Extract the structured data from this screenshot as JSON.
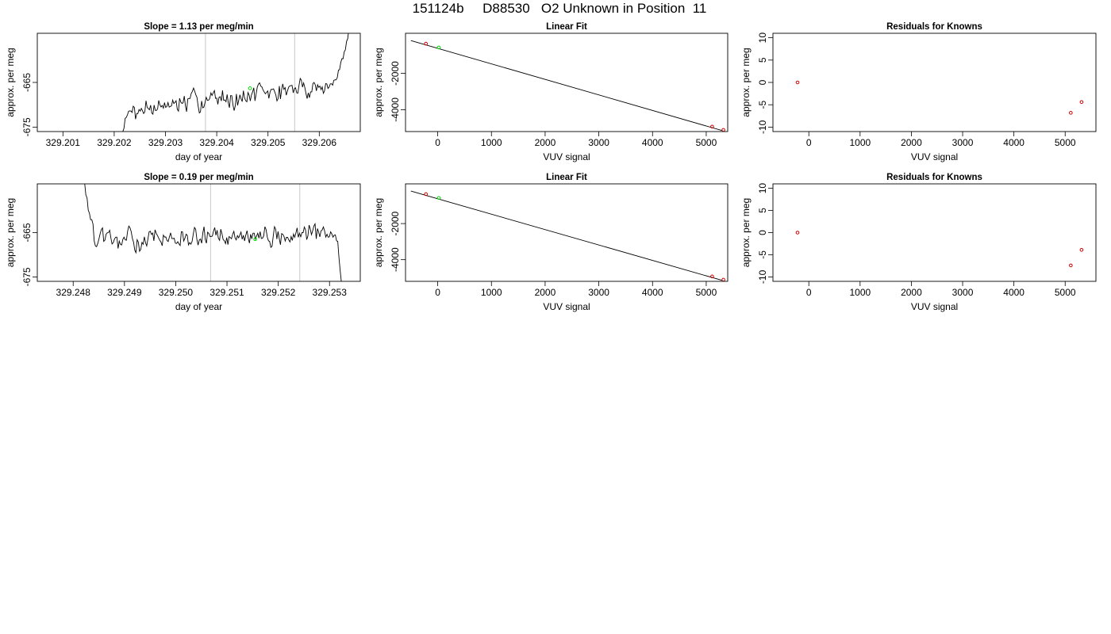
{
  "title": "151124b     D88530   O2 Unknown in Position  11",
  "colors": {
    "line": "#000000",
    "known": "#cc0000",
    "unknown": "#00dd00",
    "vline": "#c8c8c8"
  },
  "chart_data": [
    {
      "id": "p1",
      "type": "line",
      "title": "Slope =  1.13  per meg/min",
      "xlabel": "day of year",
      "ylabel": "approx. per meg",
      "xlim": [
        329.2005,
        329.2068
      ],
      "ylim": [
        -676,
        -654
      ],
      "xticks": [
        329.201,
        329.202,
        329.203,
        329.204,
        329.205,
        329.206
      ],
      "xtick_labels": [
        "329.201",
        "329.202",
        "329.203",
        "329.204",
        "329.205",
        "329.206"
      ],
      "yticks": [
        -675,
        -665
      ],
      "ytick_labels": [
        "-675",
        "-665"
      ],
      "vlines": [
        329.20378,
        329.20552
      ],
      "marker": {
        "x": 329.20465,
        "y": -666.3
      },
      "series": {
        "x_start": 329.2021,
        "x_end": 329.2066,
        "n": 200,
        "seed": 7,
        "base_start": -671.4,
        "base_end": -665.0,
        "knots": [
          [
            329.2021,
            -679.0
          ],
          [
            329.2022,
            -673.5
          ],
          [
            329.2024,
            -670.0
          ],
          [
            329.2062,
            -666.0
          ],
          [
            329.20635,
            -664.0
          ],
          [
            329.2065,
            -658.0
          ],
          [
            329.2066,
            -652.0
          ]
        ]
      }
    },
    {
      "id": "p2",
      "type": "scatter",
      "title": "Linear Fit",
      "xlabel": "VUV signal",
      "ylabel": "approx. per meg",
      "xlim": [
        -600,
        5400
      ],
      "ylim": [
        -5200,
        200
      ],
      "xticks": [
        0,
        1000,
        2000,
        3000,
        4000,
        5000
      ],
      "xtick_labels": [
        "0",
        "1000",
        "2000",
        "3000",
        "4000",
        "5000"
      ],
      "yticks": [
        -4000,
        -2000
      ],
      "ytick_labels": [
        "-4000",
        "-2000"
      ],
      "fit_line": {
        "x": [
          -500,
          5300
        ],
        "y": [
          -200,
          -5150
        ]
      },
      "known": {
        "x": [
          -220,
          5110,
          5320
        ],
        "y": [
          -370,
          -4930,
          -5110
        ]
      },
      "unknown": {
        "x": [
          20
        ],
        "y": [
          -580
        ]
      }
    },
    {
      "id": "p3",
      "type": "scatter",
      "title": "Residuals for Knowns",
      "xlabel": "VUV signal",
      "ylabel": "approx. per meg",
      "xlim": [
        -700,
        5600
      ],
      "ylim": [
        -11,
        11
      ],
      "xticks": [
        0,
        1000,
        2000,
        3000,
        4000,
        5000
      ],
      "xtick_labels": [
        "0",
        "1000",
        "2000",
        "3000",
        "4000",
        "5000"
      ],
      "yticks": [
        -10,
        -5,
        0,
        5,
        10
      ],
      "ytick_labels": [
        "-10",
        "-5",
        "0",
        "5",
        "10"
      ],
      "known": {
        "x": [
          -220,
          5110,
          5320
        ],
        "y": [
          0.0,
          -6.8,
          -4.4
        ]
      }
    },
    {
      "id": "p4",
      "type": "line",
      "title": "Slope =  0.19  per meg/min",
      "xlabel": "day of year",
      "ylabel": "approx. per meg",
      "xlim": [
        329.2473,
        329.2536
      ],
      "ylim": [
        -676,
        -654
      ],
      "xticks": [
        329.248,
        329.249,
        329.25,
        329.251,
        329.252,
        329.253
      ],
      "xtick_labels": [
        "329.248",
        "329.249",
        "329.250",
        "329.251",
        "329.252",
        "329.253"
      ],
      "yticks": [
        -675,
        -665
      ],
      "ytick_labels": [
        "-675",
        "-665"
      ],
      "vlines": [
        329.25068,
        329.25242
      ],
      "marker": {
        "x": 329.25155,
        "y": -666.5
      },
      "series": {
        "x_start": 329.2482,
        "x_end": 329.2533,
        "n": 220,
        "seed": 13,
        "base_start": -667.0,
        "base_end": -665.5,
        "knots": [
          [
            329.2482,
            -652.0
          ],
          [
            329.2483,
            -660.0
          ],
          [
            329.2484,
            -664.5
          ],
          [
            329.25315,
            -665.8
          ],
          [
            329.2532,
            -672.0
          ],
          [
            329.2533,
            -682.0
          ]
        ]
      }
    },
    {
      "id": "p5",
      "type": "scatter",
      "title": "Linear Fit",
      "xlabel": "VUV signal",
      "ylabel": "approx. per meg",
      "xlim": [
        -600,
        5400
      ],
      "ylim": [
        -5200,
        200
      ],
      "xticks": [
        0,
        1000,
        2000,
        3000,
        4000,
        5000
      ],
      "xtick_labels": [
        "0",
        "1000",
        "2000",
        "3000",
        "4000",
        "5000"
      ],
      "yticks": [
        -4000,
        -2000
      ],
      "ytick_labels": [
        "-4000",
        "-2000"
      ],
      "fit_line": {
        "x": [
          -500,
          5300
        ],
        "y": [
          -200,
          -5150
        ]
      },
      "known": {
        "x": [
          -220,
          5110,
          5320
        ],
        "y": [
          -370,
          -4930,
          -5110
        ]
      },
      "unknown": {
        "x": [
          20
        ],
        "y": [
          -580
        ]
      }
    },
    {
      "id": "p6",
      "type": "scatter",
      "title": "Residuals for Knowns",
      "xlabel": "VUV signal",
      "ylabel": "approx. per meg",
      "xlim": [
        -700,
        5600
      ],
      "ylim": [
        -11,
        11
      ],
      "xticks": [
        0,
        1000,
        2000,
        3000,
        4000,
        5000
      ],
      "xtick_labels": [
        "0",
        "1000",
        "2000",
        "3000",
        "4000",
        "5000"
      ],
      "yticks": [
        -10,
        -5,
        0,
        5,
        10
      ],
      "ytick_labels": [
        "-10",
        "-5",
        "0",
        "5",
        "10"
      ],
      "known": {
        "x": [
          -220,
          5110,
          5320
        ],
        "y": [
          0.0,
          -7.4,
          -3.9
        ]
      }
    }
  ]
}
